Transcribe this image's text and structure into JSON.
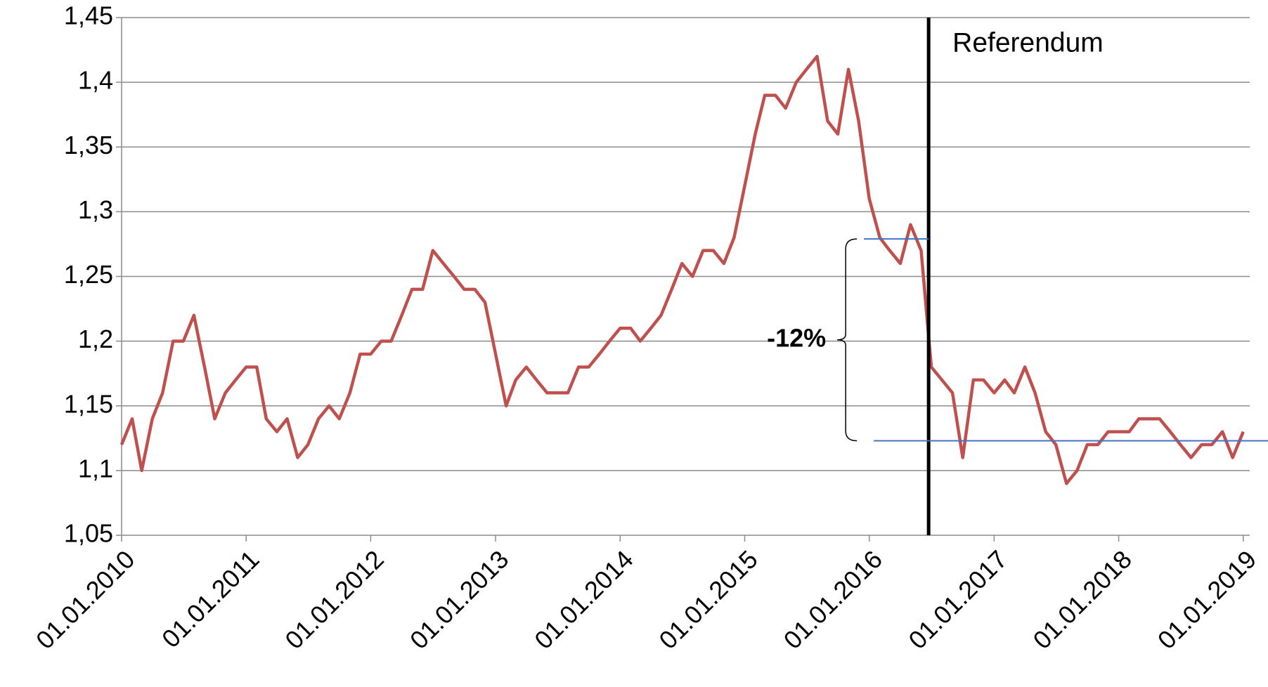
{
  "chart_data": {
    "type": "line",
    "x": [
      "2010-01-01",
      "2010-02-01",
      "2010-03-01",
      "2010-04-01",
      "2010-05-01",
      "2010-06-01",
      "2010-07-01",
      "2010-08-01",
      "2010-09-01",
      "2010-10-01",
      "2010-11-01",
      "2010-12-01",
      "2011-01-01",
      "2011-02-01",
      "2011-03-01",
      "2011-04-01",
      "2011-05-01",
      "2011-06-01",
      "2011-07-01",
      "2011-08-01",
      "2011-09-01",
      "2011-10-01",
      "2011-11-01",
      "2011-12-01",
      "2012-01-01",
      "2012-02-01",
      "2012-03-01",
      "2012-04-01",
      "2012-05-01",
      "2012-06-01",
      "2012-07-01",
      "2012-08-01",
      "2012-09-01",
      "2012-10-01",
      "2012-11-01",
      "2012-12-01",
      "2013-01-01",
      "2013-02-01",
      "2013-03-01",
      "2013-04-01",
      "2013-05-01",
      "2013-06-01",
      "2013-07-01",
      "2013-08-01",
      "2013-09-01",
      "2013-10-01",
      "2013-11-01",
      "2013-12-01",
      "2014-01-01",
      "2014-02-01",
      "2014-03-01",
      "2014-04-01",
      "2014-05-01",
      "2014-06-01",
      "2014-07-01",
      "2014-08-01",
      "2014-09-01",
      "2014-10-01",
      "2014-11-01",
      "2014-12-01",
      "2015-01-01",
      "2015-02-01",
      "2015-03-01",
      "2015-04-01",
      "2015-05-01",
      "2015-06-01",
      "2015-07-01",
      "2015-08-01",
      "2015-09-01",
      "2015-10-01",
      "2015-11-01",
      "2015-12-01",
      "2016-01-01",
      "2016-02-01",
      "2016-03-01",
      "2016-04-01",
      "2016-05-01",
      "2016-06-01",
      "2016-07-01",
      "2016-08-01",
      "2016-09-01",
      "2016-10-01",
      "2016-11-01",
      "2016-12-01",
      "2017-01-01",
      "2017-02-01",
      "2017-03-01",
      "2017-04-01",
      "2017-05-01",
      "2017-06-01",
      "2017-07-01",
      "2017-08-01",
      "2017-09-01",
      "2017-10-01",
      "2017-11-01",
      "2017-12-01",
      "2018-01-01",
      "2018-02-01",
      "2018-03-01",
      "2018-04-01",
      "2018-05-01",
      "2018-06-01",
      "2018-07-01",
      "2018-08-01",
      "2018-09-01",
      "2018-10-01",
      "2018-11-01",
      "2018-12-01",
      "2019-01-01"
    ],
    "series": [
      {
        "color": "#c0504d",
        "values": [
          1.12,
          1.14,
          1.1,
          1.14,
          1.16,
          1.2,
          1.2,
          1.22,
          1.18,
          1.14,
          1.16,
          1.17,
          1.18,
          1.18,
          1.14,
          1.13,
          1.14,
          1.11,
          1.12,
          1.14,
          1.15,
          1.14,
          1.16,
          1.19,
          1.19,
          1.2,
          1.2,
          1.22,
          1.24,
          1.24,
          1.27,
          1.26,
          1.25,
          1.24,
          1.24,
          1.23,
          1.19,
          1.15,
          1.17,
          1.18,
          1.17,
          1.16,
          1.16,
          1.16,
          1.18,
          1.18,
          1.19,
          1.2,
          1.21,
          1.21,
          1.2,
          1.21,
          1.22,
          1.24,
          1.26,
          1.25,
          1.27,
          1.27,
          1.26,
          1.28,
          1.32,
          1.36,
          1.39,
          1.39,
          1.38,
          1.4,
          1.41,
          1.42,
          1.37,
          1.36,
          1.41,
          1.37,
          1.31,
          1.28,
          1.27,
          1.26,
          1.29,
          1.27,
          1.18,
          1.17,
          1.16,
          1.11,
          1.17,
          1.17,
          1.16,
          1.17,
          1.16,
          1.18,
          1.16,
          1.13,
          1.12,
          1.09,
          1.1,
          1.12,
          1.12,
          1.13,
          1.13,
          1.13,
          1.14,
          1.14,
          1.14,
          1.13,
          1.12,
          1.11,
          1.12,
          1.12,
          1.13,
          1.11,
          1.13
        ]
      }
    ],
    "xlim": [
      "2010-01-01",
      "2019-01-20"
    ],
    "xticks": [
      {
        "value": "2010-01-01",
        "label": "01.01.2010"
      },
      {
        "value": "2011-01-01",
        "label": "01.01.2011"
      },
      {
        "value": "2012-01-01",
        "label": "01.01.2012"
      },
      {
        "value": "2013-01-01",
        "label": "01.01.2013"
      },
      {
        "value": "2014-01-01",
        "label": "01.01.2014"
      },
      {
        "value": "2015-01-01",
        "label": "01.01.2015"
      },
      {
        "value": "2016-01-01",
        "label": "01.01.2016"
      },
      {
        "value": "2017-01-01",
        "label": "01.01.2017"
      },
      {
        "value": "2018-01-01",
        "label": "01.01.2018"
      },
      {
        "value": "2019-01-01",
        "label": "01.01.2019"
      }
    ],
    "ylim": [
      1.05,
      1.45
    ],
    "yticks": [
      {
        "value": 1.05,
        "label": "1,05"
      },
      {
        "value": 1.1,
        "label": "1,1"
      },
      {
        "value": 1.15,
        "label": "1,15"
      },
      {
        "value": 1.2,
        "label": "1,2"
      },
      {
        "value": 1.25,
        "label": "1,25"
      },
      {
        "value": 1.3,
        "label": "1,3"
      },
      {
        "value": 1.35,
        "label": "1,35"
      },
      {
        "value": 1.4,
        "label": "1,4"
      },
      {
        "value": 1.45,
        "label": "1,45"
      }
    ],
    "grid": true,
    "vline": {
      "x": "2016-06-23",
      "label": "Referendum"
    },
    "hlines": [
      {
        "value": 1.279,
        "color": "#4472c4"
      },
      {
        "value": 1.123,
        "color": "#4472c4"
      }
    ],
    "change_label": "-12%"
  }
}
